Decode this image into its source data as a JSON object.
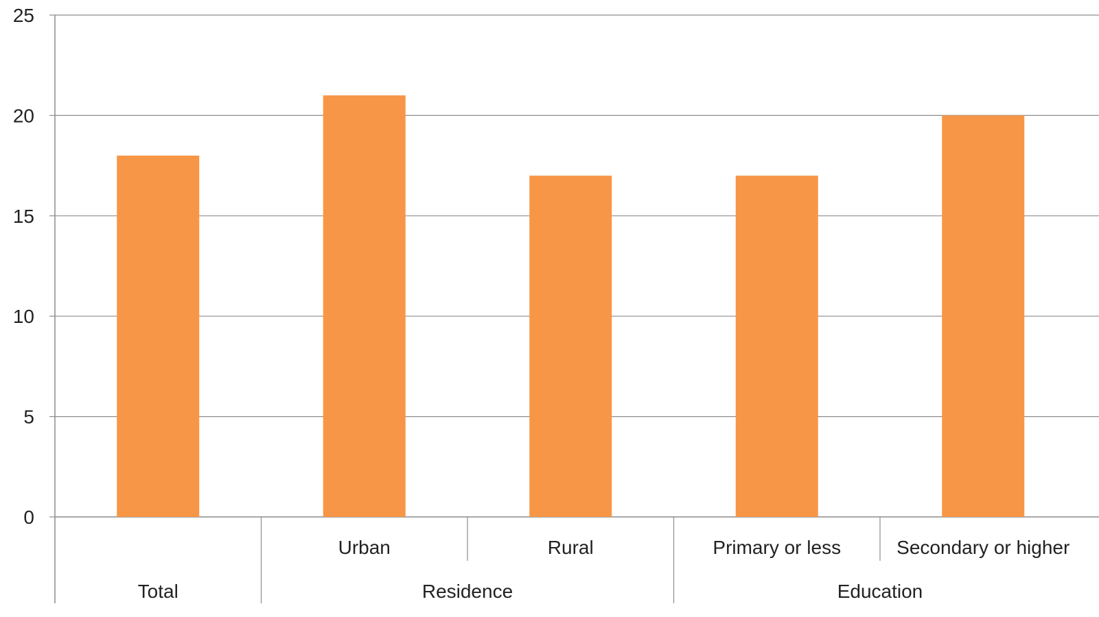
{
  "chart_data": {
    "type": "bar",
    "categories": [
      "Total",
      "Urban",
      "Rural",
      "Primary or less",
      "Secondary or higher"
    ],
    "groups": [
      {
        "label": "Total",
        "categories": [
          "Total"
        ]
      },
      {
        "label": "Residence",
        "categories": [
          "Urban",
          "Rural"
        ]
      },
      {
        "label": "Education",
        "categories": [
          "Primary or less",
          "Secondary or higher"
        ]
      }
    ],
    "values": [
      18,
      21,
      17,
      17,
      20
    ],
    "title": "",
    "xlabel": "",
    "ylabel": "",
    "ylim": [
      0,
      25
    ],
    "yticks": [
      0,
      5,
      10,
      15,
      20,
      25
    ],
    "grid": true,
    "legend": "none",
    "bar_color": "#F79646"
  }
}
